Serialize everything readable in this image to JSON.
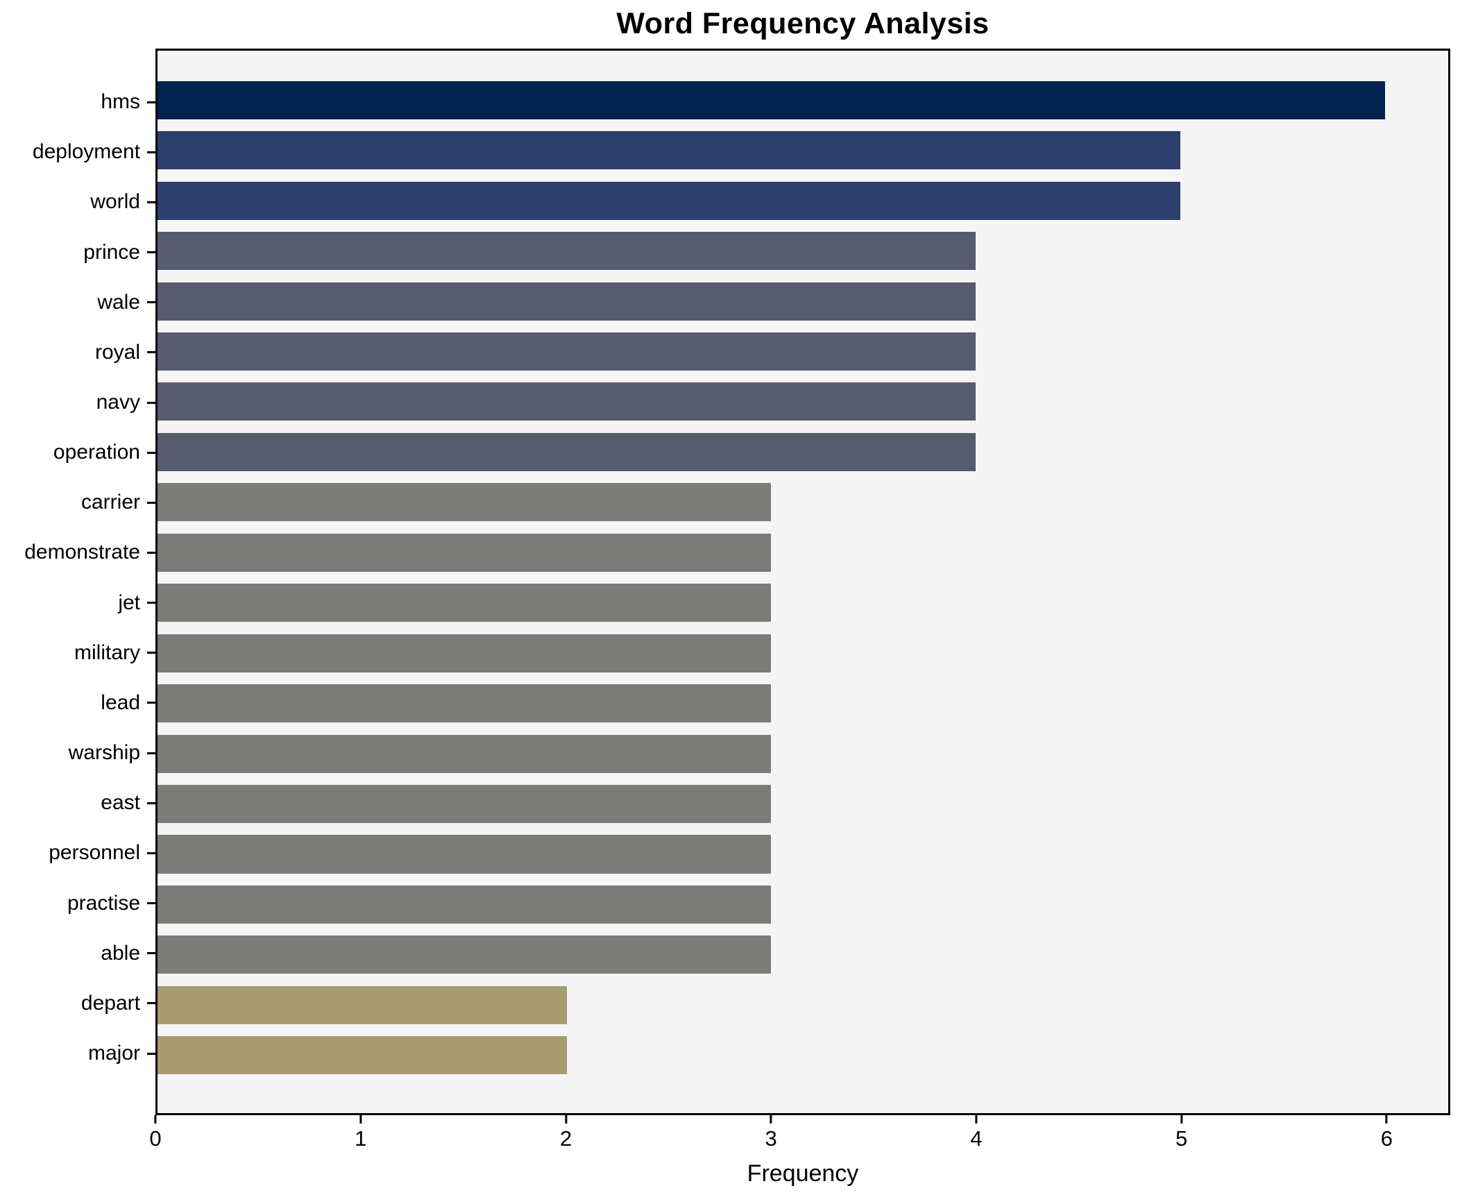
{
  "title": "Word Frequency Analysis",
  "chart_data": {
    "type": "bar",
    "orientation": "horizontal",
    "title": "Word Frequency Analysis",
    "xlabel": "Frequency",
    "ylabel": "",
    "categories": [
      "hms",
      "deployment",
      "world",
      "prince",
      "wale",
      "royal",
      "navy",
      "operation",
      "carrier",
      "demonstrate",
      "jet",
      "military",
      "lead",
      "warship",
      "east",
      "personnel",
      "practise",
      "able",
      "depart",
      "major"
    ],
    "values": [
      6,
      5,
      5,
      4,
      4,
      4,
      4,
      4,
      3,
      3,
      3,
      3,
      3,
      3,
      3,
      3,
      3,
      3,
      2,
      2
    ],
    "bar_colors": [
      "#022350",
      "#2b3f6d",
      "#2b3f6d",
      "#565c6d",
      "#565c6d",
      "#565c6d",
      "#565c6d",
      "#565c6d",
      "#7b7b77",
      "#7b7b77",
      "#7b7b77",
      "#7b7b77",
      "#7b7b77",
      "#7b7b77",
      "#7b7b77",
      "#7b7b77",
      "#7b7b77",
      "#7b7b77",
      "#a79c70",
      "#a79c70"
    ],
    "xticks": [
      0,
      1,
      2,
      3,
      4,
      5,
      6
    ],
    "xlim": [
      0,
      6.31
    ],
    "grid": false,
    "legend": "none",
    "plot_background": "#f5f5f6",
    "figure_background": "#ffffff",
    "spine_color": "#000000"
  }
}
